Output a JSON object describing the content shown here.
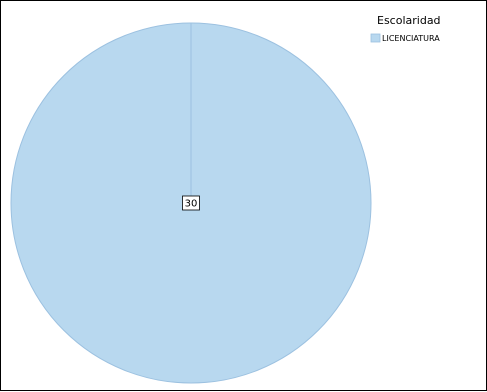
{
  "chart_data": {
    "type": "pie",
    "title": "",
    "legend": {
      "title": "Escolaridad",
      "placement": "top-right"
    },
    "categories": [
      "LICENCIATURA"
    ],
    "values": [
      30
    ],
    "data_labels": [
      "30"
    ],
    "colors": [
      "#b8d8ef"
    ],
    "edge_color": "#9cc1e0"
  }
}
